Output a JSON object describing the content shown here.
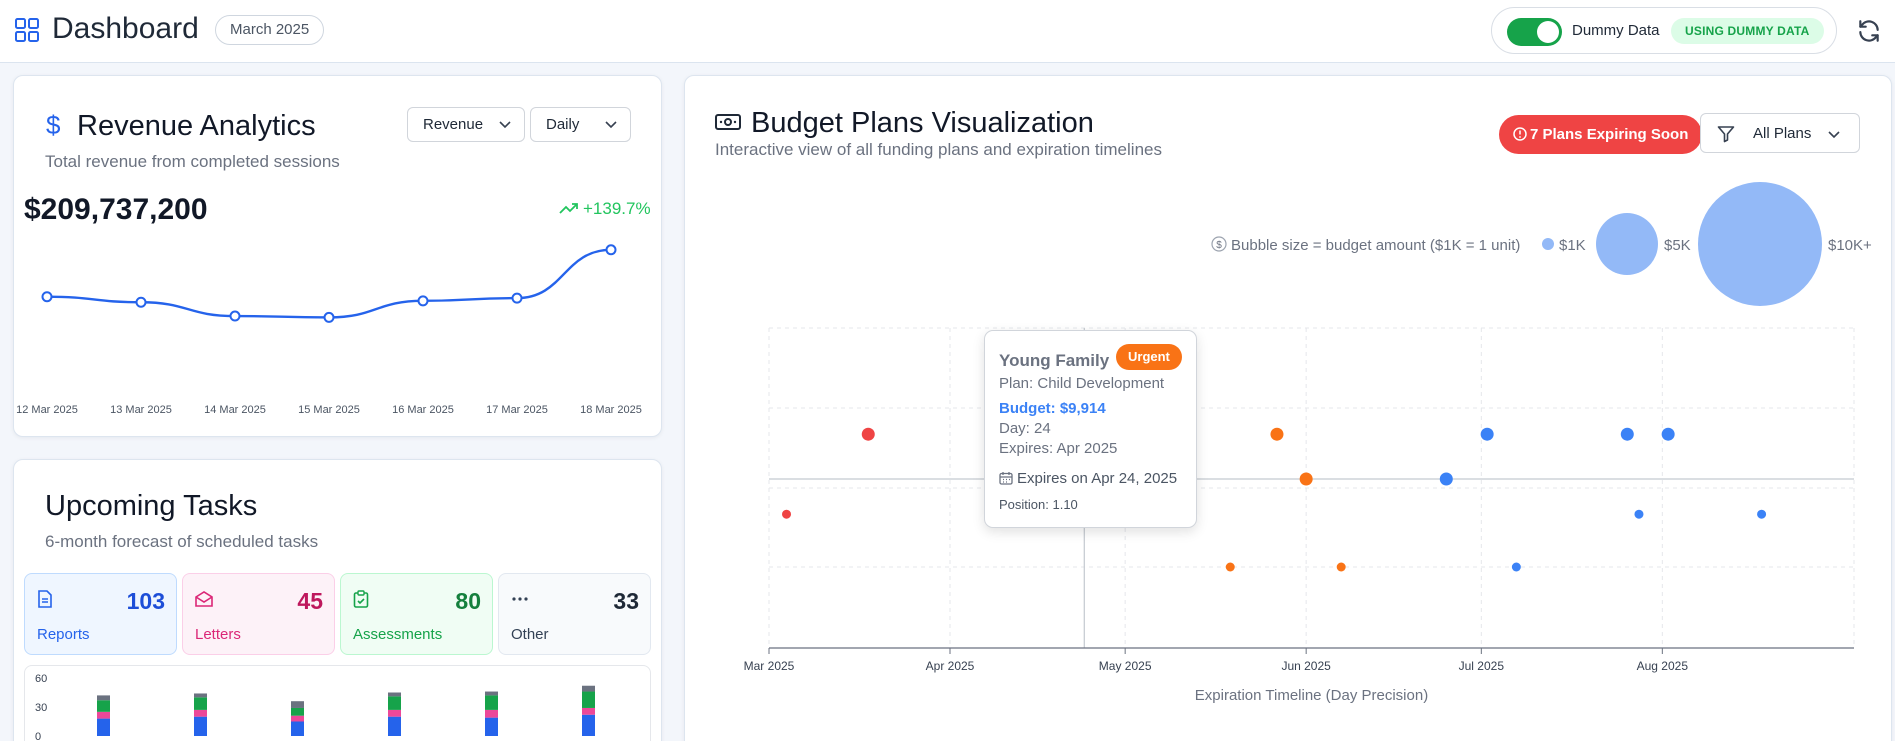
{
  "header": {
    "title": "Dashboard",
    "month": "March 2025",
    "toggle_label": "Dummy Data",
    "toggle_on": true,
    "dummy_badge": "USING DUMMY DATA"
  },
  "colors": {
    "primary": "#2563eb",
    "success": "#16a34a",
    "danger": "#ef4444",
    "urgent": "#f97316"
  },
  "revenue": {
    "title": "Revenue Analytics",
    "subtitle": "Total revenue from completed sessions",
    "metric_select": "Revenue",
    "period_select": "Daily",
    "total": "$209,737,200",
    "growth": "+139.7%",
    "chart_data": {
      "type": "line",
      "categories": [
        "12 Mar 2025",
        "13 Mar 2025",
        "14 Mar 2025",
        "15 Mar 2025",
        "16 Mar 2025",
        "17 Mar 2025",
        "18 Mar 2025"
      ],
      "values": [
        28,
        26,
        21,
        20.5,
        26.5,
        27.5,
        45
      ],
      "ylim": [
        0,
        50
      ]
    }
  },
  "tasks": {
    "title": "Upcoming Tasks",
    "subtitle": "6-month forecast of scheduled tasks",
    "stats": [
      {
        "label": "Reports",
        "count": "103",
        "icon": "document-icon"
      },
      {
        "label": "Letters",
        "count": "45",
        "icon": "envelope-icon"
      },
      {
        "label": "Assessments",
        "count": "80",
        "icon": "clipboard-icon"
      },
      {
        "label": "Other",
        "count": "33",
        "icon": "more-icon"
      }
    ],
    "chart_data": {
      "type": "bar",
      "y_ticks": [
        "60",
        "30",
        "0"
      ],
      "ylim": [
        0,
        60
      ],
      "series": [
        {
          "color": "#2563eb",
          "values": [
            18,
            20,
            15,
            20,
            19,
            22
          ]
        },
        {
          "color": "#ec4899",
          "values": [
            7,
            7,
            6,
            7,
            8,
            7
          ]
        },
        {
          "color": "#16a34a",
          "values": [
            12,
            13,
            8,
            14,
            15,
            17
          ]
        },
        {
          "color": "#6b7280",
          "values": [
            5,
            4,
            7,
            4,
            4,
            6
          ]
        }
      ]
    }
  },
  "budget": {
    "title": "Budget Plans Visualization",
    "subtitle": "Interactive view of all funding plans and expiration timelines",
    "expiring_label": "7 Plans Expiring Soon",
    "filter_label": "All Plans",
    "legend": {
      "text": "Bubble size = budget amount ($1K = 1 unit)",
      "sizes": [
        "$1K",
        "$5K",
        "$10K+"
      ]
    },
    "chart_data": {
      "type": "scatter",
      "xlabel": "Expiration Timeline (Day Precision)",
      "x_ticks": [
        "Mar 2025",
        "Apr 2025",
        "May 2025",
        "Jun 2025",
        "Jul 2025",
        "Aug 2025"
      ],
      "points": [
        {
          "date": "2025-03-04",
          "position": 0.66,
          "color": "#ef4444"
        },
        {
          "date": "2025-03-18",
          "position": 1.66,
          "color": "#ef4444"
        },
        {
          "date": "2025-04-24",
          "position": 1.1,
          "color": "#f97316"
        },
        {
          "date": "2025-05-19",
          "position": 0.0,
          "color": "#f97316"
        },
        {
          "date": "2025-06-07",
          "position": 0.0,
          "color": "#f97316"
        },
        {
          "date": "2025-05-27",
          "position": 1.66,
          "color": "#f97316"
        },
        {
          "date": "2025-06-01",
          "position": 1.1,
          "color": "#f97316"
        },
        {
          "date": "2025-06-25",
          "position": 1.1,
          "color": "#3b82f6"
        },
        {
          "date": "2025-07-02",
          "position": 1.66,
          "color": "#3b82f6"
        },
        {
          "date": "2025-07-07",
          "position": 0.0,
          "color": "#3b82f6"
        },
        {
          "date": "2025-07-26",
          "position": 1.66,
          "color": "#3b82f6"
        },
        {
          "date": "2025-08-02",
          "position": 1.66,
          "color": "#3b82f6"
        },
        {
          "date": "2025-07-28",
          "position": 0.66,
          "color": "#3b82f6"
        },
        {
          "date": "2025-08-18",
          "position": 0.66,
          "color": "#3b82f6"
        }
      ]
    },
    "tooltip": {
      "name": "Young Family",
      "badge": "Urgent",
      "plan": "Plan: Child Development",
      "budget": "Budget: $9,914",
      "day": "Day: 24",
      "expires": "Expires: Apr 2025",
      "expires_on": "Expires on Apr 24, 2025",
      "position": "Position: 1.10"
    }
  }
}
